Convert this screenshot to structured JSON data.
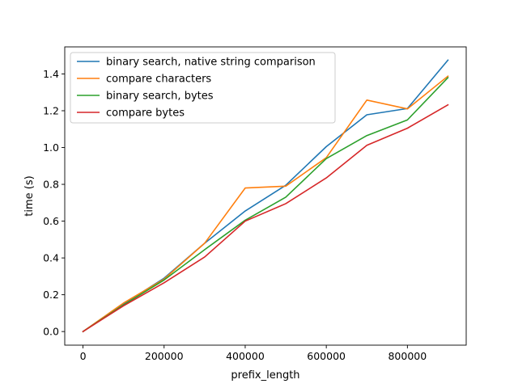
{
  "chart_data": {
    "type": "line",
    "title": "",
    "xlabel": "prefix_length",
    "ylabel": "time (s)",
    "xlim": [
      -45000,
      945000
    ],
    "ylim": [
      -0.074,
      1.547
    ],
    "xticks": [
      0,
      200000,
      400000,
      600000,
      800000
    ],
    "yticks": [
      0.0,
      0.2,
      0.4,
      0.6,
      0.8,
      1.0,
      1.2,
      1.4
    ],
    "xtick_labels": [
      "0",
      "200000",
      "400000",
      "600000",
      "800000"
    ],
    "ytick_labels": [
      "0.0",
      "0.2",
      "0.4",
      "0.6",
      "0.8",
      "1.0",
      "1.2",
      "1.4"
    ],
    "x": [
      0,
      100000,
      200000,
      300000,
      400000,
      500000,
      600000,
      700000,
      800000,
      900000
    ],
    "grid": false,
    "legend_position": "top-left",
    "series": [
      {
        "name": "binary search, native string comparison",
        "color": "#1f77b4",
        "values": [
          0.0,
          0.15,
          0.29,
          0.48,
          0.655,
          0.795,
          1.005,
          1.178,
          1.212,
          1.475
        ]
      },
      {
        "name": "compare characters",
        "color": "#ff7f0e",
        "values": [
          0.0,
          0.155,
          0.285,
          0.48,
          0.78,
          0.79,
          0.945,
          1.258,
          1.21,
          1.388
        ]
      },
      {
        "name": "binary search, bytes",
        "color": "#2ca02c",
        "values": [
          0.0,
          0.145,
          0.28,
          0.445,
          0.605,
          0.73,
          0.94,
          1.065,
          1.15,
          1.38
        ]
      },
      {
        "name": "compare bytes",
        "color": "#d62728",
        "values": [
          0.0,
          0.14,
          0.265,
          0.405,
          0.6,
          0.695,
          0.835,
          1.012,
          1.105,
          1.232
        ]
      }
    ]
  }
}
